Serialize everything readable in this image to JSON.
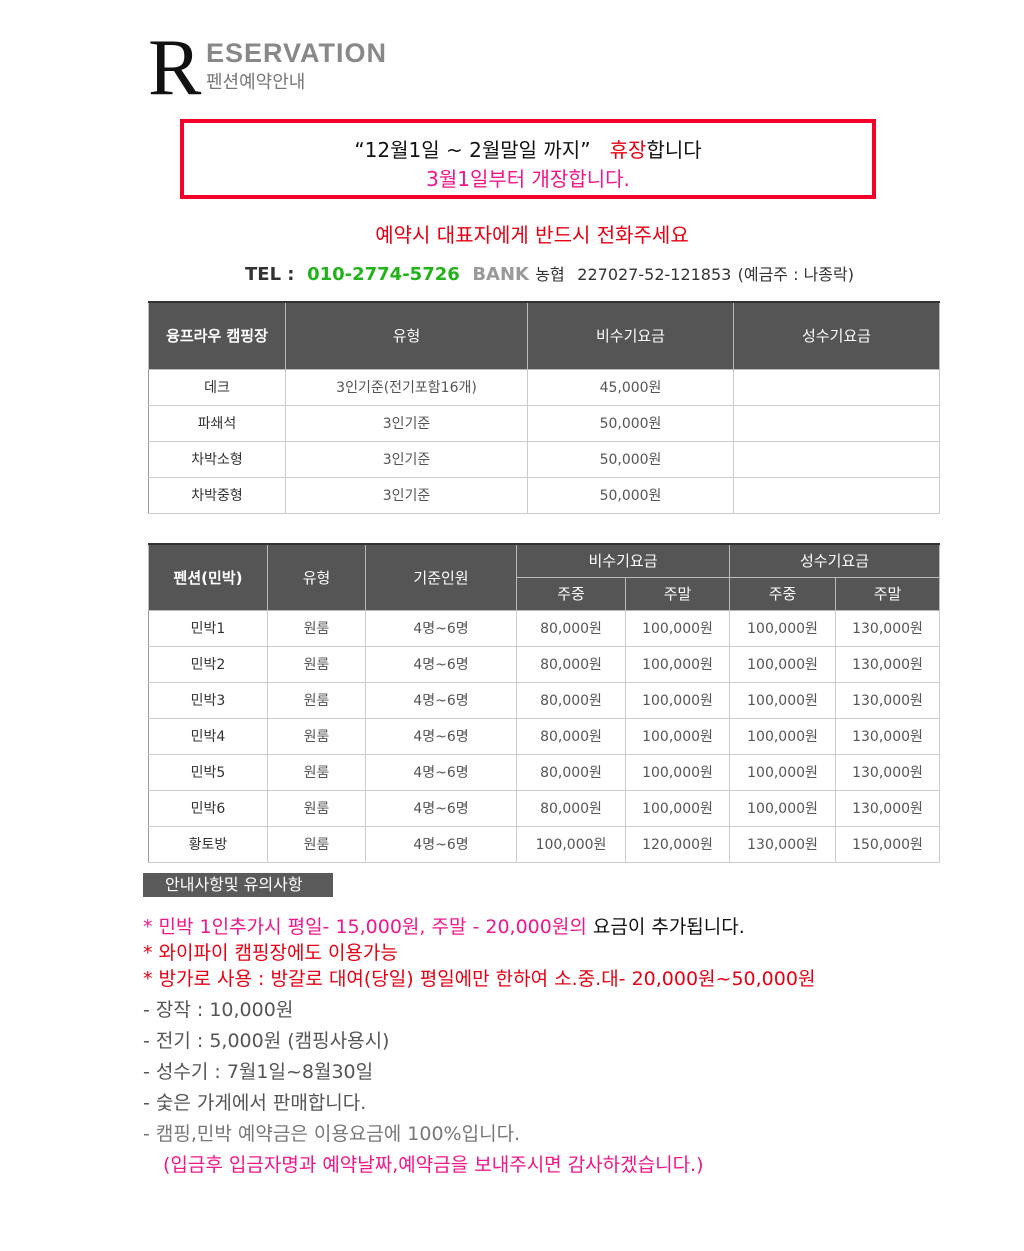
{
  "logo": {
    "letter": "R",
    "title": "ESERVATION",
    "subtitle": "펜션예약안내"
  },
  "notice": {
    "line1_a": "“12월1일 ~ 2월말일 까지”",
    "line1_b": "휴장",
    "line1_c": "합니다",
    "line2": "3월1일부터 개장합니다."
  },
  "call_note": "예약시 대표자에게 반드시  전화주세요",
  "contact": {
    "tel_label": "TEL :",
    "tel": "010-2774-5726",
    "bank_label": "BANK",
    "bank": "농협",
    "account": "227027-52-121853",
    "holder": "(예금주 : 나종락)"
  },
  "camping": {
    "headers": [
      "융프라우 캠핑장",
      "유형",
      "비수기요금",
      "성수기요금"
    ],
    "rows": [
      [
        "데크",
        "3인기준(전기포함16개)",
        "45,000원",
        ""
      ],
      [
        "파쇄석",
        "3인기준",
        "50,000원",
        ""
      ],
      [
        "차박소형",
        "3인기준",
        "50,000원",
        ""
      ],
      [
        "차박중형",
        "3인기준",
        "50,000원",
        ""
      ]
    ]
  },
  "pension": {
    "headers": {
      "name": "펜션(민박)",
      "type": "유형",
      "capacity": "기준인원",
      "off": "비수기요금",
      "peak": "성수기요금",
      "weekday": "주중",
      "weekend": "주말"
    },
    "rows": [
      [
        "민박1",
        "원룸",
        "4명~6명",
        "80,000원",
        "100,000원",
        "100,000원",
        "130,000원"
      ],
      [
        "민박2",
        "원룸",
        "4명~6명",
        "80,000원",
        "100,000원",
        "100,000원",
        "130,000원"
      ],
      [
        "민박3",
        "원룸",
        "4명~6명",
        "80,000원",
        "100,000원",
        "100,000원",
        "130,000원"
      ],
      [
        "민박4",
        "원룸",
        "4명~6명",
        "80,000원",
        "100,000원",
        "100,000원",
        "130,000원"
      ],
      [
        "민박5",
        "원룸",
        "4명~6명",
        "80,000원",
        "100,000원",
        "100,000원",
        "130,000원"
      ],
      [
        "민박6",
        "원룸",
        "4명~6명",
        "80,000원",
        "100,000원",
        "100,000원",
        "130,000원"
      ],
      [
        "황토방",
        "원룸",
        "4명~6명",
        "100,000원",
        "120,000원",
        "130,000원",
        "150,000원"
      ]
    ]
  },
  "guide": {
    "title": "안내사항및 유의사항",
    "l1a": "* 민박 1인추가시 평일- 15,000원, 주말 -  20,000원의",
    "l1b": " 요금이 추가됩니다.",
    "l2": "* 와이파이 캠핑장에도 이용가능",
    "l3": "* 방가로 사용 : 방갈로 대여(당일) 평일에만 한하여  소.중.대- 20,000원~50,000원",
    "l4": "- 장작 : 10,000원",
    "l5": "- 전기 : 5,000원 (캠핑사용시)",
    "l6": "- 성수기 : 7월1일~8월30일",
    "l7": "- 숯은 가게에서 판매합니다.",
    "l8": "- 캠핑,민박 예약금은 이용요금에 100%입니다.",
    "l9": "(입금후 입금자명과 예약날짜,예약금을 보내주시면 감사하겠습니다.)"
  }
}
